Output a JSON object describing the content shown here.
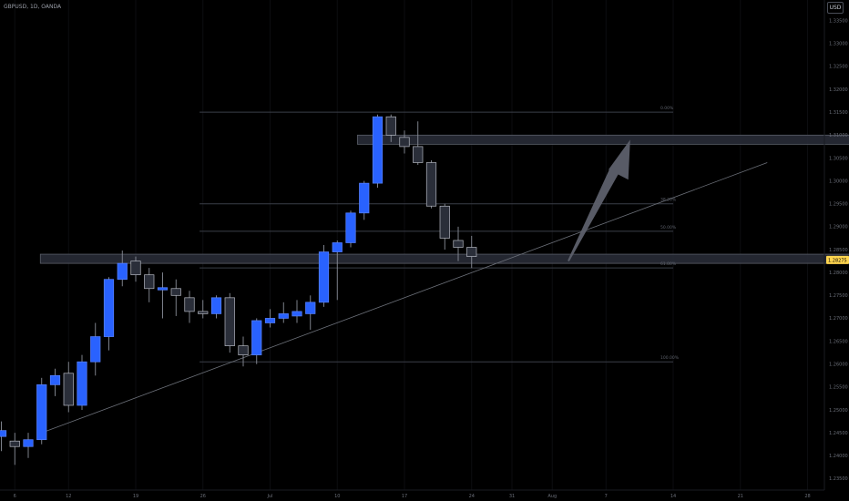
{
  "chart": {
    "symbol_label": "GBPUSD, 1D, OANDA",
    "currency_label": "USD"
  },
  "chart_data": {
    "type": "candlestick",
    "ylim": [
      1.2325,
      1.3395
    ],
    "yticks": [
      1.235,
      1.24,
      1.245,
      1.25,
      1.255,
      1.26,
      1.265,
      1.27,
      1.275,
      1.28,
      1.285,
      1.29,
      1.295,
      1.3,
      1.305,
      1.31,
      1.315,
      1.32,
      1.325,
      1.33,
      1.335
    ],
    "ytick_labels": [
      "1.23500",
      "1.24000",
      "1.24500",
      "1.25000",
      "1.25500",
      "1.26000",
      "1.26500",
      "1.27000",
      "1.27500",
      "1.28000",
      "1.28500",
      "1.29000",
      "1.29500",
      "1.30000",
      "1.30500",
      "1.31000",
      "1.31500",
      "1.32000",
      "1.32500",
      "1.33000",
      "1.33500"
    ],
    "current_price": 1.28275,
    "current_price_label": "1.28275",
    "xticks": [
      {
        "label": "6",
        "bar": 1
      },
      {
        "label": "12",
        "bar": 5
      },
      {
        "label": "19",
        "bar": 10
      },
      {
        "label": "26",
        "bar": 15
      },
      {
        "label": "Jul",
        "bar": 20
      },
      {
        "label": "10",
        "bar": 25
      },
      {
        "label": "17",
        "bar": 30
      },
      {
        "label": "24",
        "bar": 35
      },
      {
        "label": "31",
        "bar": 38
      },
      {
        "label": "Aug",
        "bar": 41
      },
      {
        "label": "7",
        "bar": 45
      },
      {
        "label": "14",
        "bar": 50
      },
      {
        "label": "21",
        "bar": 55
      },
      {
        "label": "28",
        "bar": 60
      }
    ],
    "candles": [
      {
        "bar": 0,
        "o": 1.2442,
        "h": 1.2475,
        "l": 1.241,
        "c": 1.2455
      },
      {
        "bar": 1,
        "o": 1.2432,
        "h": 1.245,
        "l": 1.238,
        "c": 1.242
      },
      {
        "bar": 2,
        "o": 1.242,
        "h": 1.245,
        "l": 1.2395,
        "c": 1.2435
      },
      {
        "bar": 3,
        "o": 1.2435,
        "h": 1.257,
        "l": 1.2425,
        "c": 1.2555
      },
      {
        "bar": 4,
        "o": 1.2555,
        "h": 1.259,
        "l": 1.253,
        "c": 1.2575
      },
      {
        "bar": 5,
        "o": 1.258,
        "h": 1.2605,
        "l": 1.2495,
        "c": 1.251
      },
      {
        "bar": 6,
        "o": 1.251,
        "h": 1.262,
        "l": 1.25,
        "c": 1.2605
      },
      {
        "bar": 7,
        "o": 1.2605,
        "h": 1.269,
        "l": 1.2575,
        "c": 1.266
      },
      {
        "bar": 8,
        "o": 1.266,
        "h": 1.279,
        "l": 1.263,
        "c": 1.2785
      },
      {
        "bar": 9,
        "o": 1.2785,
        "h": 1.2848,
        "l": 1.277,
        "c": 1.282
      },
      {
        "bar": 10,
        "o": 1.2825,
        "h": 1.2835,
        "l": 1.278,
        "c": 1.2795
      },
      {
        "bar": 11,
        "o": 1.2795,
        "h": 1.281,
        "l": 1.2735,
        "c": 1.2765
      },
      {
        "bar": 12,
        "o": 1.2762,
        "h": 1.28,
        "l": 1.27,
        "c": 1.2767
      },
      {
        "bar": 13,
        "o": 1.2765,
        "h": 1.2785,
        "l": 1.2705,
        "c": 1.275
      },
      {
        "bar": 14,
        "o": 1.2745,
        "h": 1.276,
        "l": 1.269,
        "c": 1.2715
      },
      {
        "bar": 15,
        "o": 1.2715,
        "h": 1.274,
        "l": 1.27,
        "c": 1.271
      },
      {
        "bar": 16,
        "o": 1.271,
        "h": 1.275,
        "l": 1.27,
        "c": 1.2745
      },
      {
        "bar": 17,
        "o": 1.2745,
        "h": 1.2755,
        "l": 1.2625,
        "c": 1.264
      },
      {
        "bar": 18,
        "o": 1.264,
        "h": 1.266,
        "l": 1.2595,
        "c": 1.262
      },
      {
        "bar": 19,
        "o": 1.262,
        "h": 1.27,
        "l": 1.26,
        "c": 1.2695
      },
      {
        "bar": 20,
        "o": 1.269,
        "h": 1.272,
        "l": 1.268,
        "c": 1.27
      },
      {
        "bar": 21,
        "o": 1.27,
        "h": 1.2735,
        "l": 1.269,
        "c": 1.271
      },
      {
        "bar": 22,
        "o": 1.2705,
        "h": 1.274,
        "l": 1.269,
        "c": 1.2715
      },
      {
        "bar": 23,
        "o": 1.271,
        "h": 1.275,
        "l": 1.2675,
        "c": 1.2735
      },
      {
        "bar": 24,
        "o": 1.2735,
        "h": 1.286,
        "l": 1.2725,
        "c": 1.2845
      },
      {
        "bar": 25,
        "o": 1.2845,
        "h": 1.287,
        "l": 1.274,
        "c": 1.2865
      },
      {
        "bar": 26,
        "o": 1.2865,
        "h": 1.2935,
        "l": 1.2855,
        "c": 1.293
      },
      {
        "bar": 27,
        "o": 1.293,
        "h": 1.3,
        "l": 1.2915,
        "c": 1.2995
      },
      {
        "bar": 28,
        "o": 1.2995,
        "h": 1.3145,
        "l": 1.2985,
        "c": 1.314
      },
      {
        "bar": 29,
        "o": 1.314,
        "h": 1.3145,
        "l": 1.3085,
        "c": 1.31
      },
      {
        "bar": 30,
        "o": 1.3095,
        "h": 1.311,
        "l": 1.306,
        "c": 1.3075
      },
      {
        "bar": 31,
        "o": 1.3075,
        "h": 1.313,
        "l": 1.3035,
        "c": 1.304
      },
      {
        "bar": 32,
        "o": 1.304,
        "h": 1.3045,
        "l": 1.294,
        "c": 1.2945
      },
      {
        "bar": 33,
        "o": 1.2945,
        "h": 1.295,
        "l": 1.285,
        "c": 1.2875
      },
      {
        "bar": 34,
        "o": 1.287,
        "h": 1.29,
        "l": 1.2825,
        "c": 1.2855
      },
      {
        "bar": 35,
        "o": 1.2855,
        "h": 1.288,
        "l": 1.281,
        "c": 1.2835
      }
    ],
    "colors": {
      "up_body": "#2962ff",
      "up_border": "#5a83ff",
      "down_body": "#2a2e39",
      "down_border": "#b4b7c0",
      "wick": "#8a8e99",
      "background": "#000000",
      "zone": "#2a2e39",
      "fib_line": "#3b3f48",
      "trendline": "#6b6f78",
      "arrow": "#5d606b",
      "price_tag": "#ffd54f",
      "axis_text": "#6a6e78"
    },
    "fib_levels": [
      {
        "label": "0.00%",
        "price": 1.315
      },
      {
        "label": "38.20%",
        "price": 1.295
      },
      {
        "label": "50.00%",
        "price": 1.289
      },
      {
        "label": "61.80%",
        "price": 1.281
      },
      {
        "label": "100.00%",
        "price": 1.2605
      }
    ],
    "zones": [
      {
        "name": "upper-zone",
        "bar_start": 26.5,
        "bar_end": 66.5,
        "price_top": 1.31,
        "price_bottom": 1.308
      },
      {
        "name": "lower-zone",
        "bar_start": 2.9,
        "bar_end": 66.5,
        "price_top": 1.284,
        "price_bottom": 1.282
      }
    ],
    "trendline": {
      "bar1": 3,
      "price1": 1.245,
      "bar2": 57,
      "price2": 1.304
    },
    "arrow": {
      "bar1": 42.2,
      "price1": 1.2825,
      "bar2": 46.8,
      "price2": 1.309
    }
  }
}
